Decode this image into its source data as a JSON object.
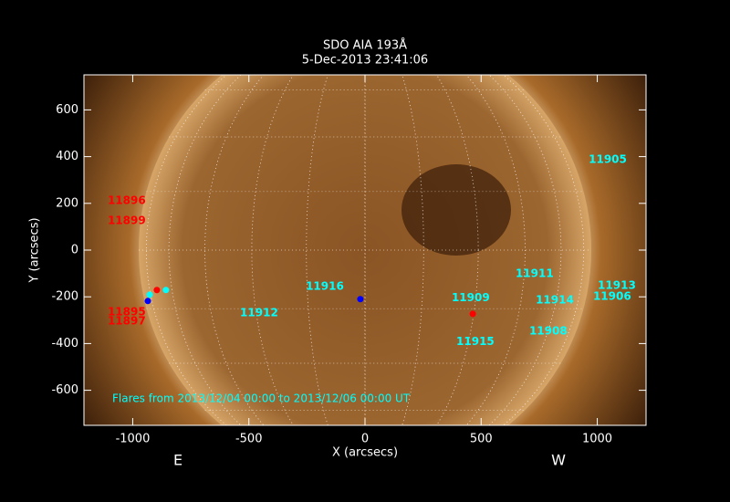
{
  "chart_data": {
    "type": "scatter",
    "title": "SDO AIA 193Å",
    "subtitle": "5-Dec-2013 23:41:06",
    "x_label": "X (arcsecs)",
    "y_label": "Y (arcsecs)",
    "xlim": [
      -1210,
      1210
    ],
    "ylim": [
      -750,
      750
    ],
    "xticks": [
      -1000,
      -500,
      0,
      500,
      1000
    ],
    "yticks": [
      -600,
      -400,
      -200,
      0,
      200,
      400,
      600
    ],
    "side_labels": [
      "E",
      "W"
    ],
    "footnote": "Flares from 2013/12/04 00:00 to 2013/12/06 00:00 UT",
    "regions": [
      {
        "label": "11905",
        "x": 963,
        "y": 386,
        "color": "#00ffff"
      },
      {
        "label": "11896",
        "x": -1108,
        "y": 210,
        "color": "#ff0000"
      },
      {
        "label": "11899",
        "x": -1108,
        "y": 125,
        "color": "#ff0000"
      },
      {
        "label": "11895",
        "x": -1108,
        "y": -265,
        "color": "#ff0000"
      },
      {
        "label": "11897",
        "x": -1108,
        "y": -304,
        "color": "#ff0000"
      },
      {
        "label": "11911",
        "x": 648,
        "y": -101,
        "color": "#00ffff"
      },
      {
        "label": "11913",
        "x": 1002,
        "y": -152,
        "color": "#00ffff"
      },
      {
        "label": "11906",
        "x": 982,
        "y": -199,
        "color": "#00ffff"
      },
      {
        "label": "11916",
        "x": -255,
        "y": -156,
        "color": "#00ffff"
      },
      {
        "label": "11909",
        "x": 373,
        "y": -206,
        "color": "#00ffff"
      },
      {
        "label": "11914",
        "x": 735,
        "y": -214,
        "color": "#00ffff"
      },
      {
        "label": "11912",
        "x": -538,
        "y": -269,
        "color": "#00ffff"
      },
      {
        "label": "11908",
        "x": 707,
        "y": -347,
        "color": "#00ffff"
      },
      {
        "label": "11915",
        "x": 393,
        "y": -393,
        "color": "#00ffff"
      }
    ],
    "points": [
      {
        "x": -20,
        "y": -210,
        "color": "#0000ff"
      },
      {
        "x": 464,
        "y": -273,
        "color": "#ff0000"
      },
      {
        "x": -896,
        "y": -171,
        "color": "#ff0000"
      },
      {
        "x": -857,
        "y": -171,
        "color": "#00ffff"
      },
      {
        "x": -927,
        "y": -191,
        "color": "#00ffff"
      },
      {
        "x": -935,
        "y": -218,
        "color": "#0000ff"
      }
    ]
  }
}
